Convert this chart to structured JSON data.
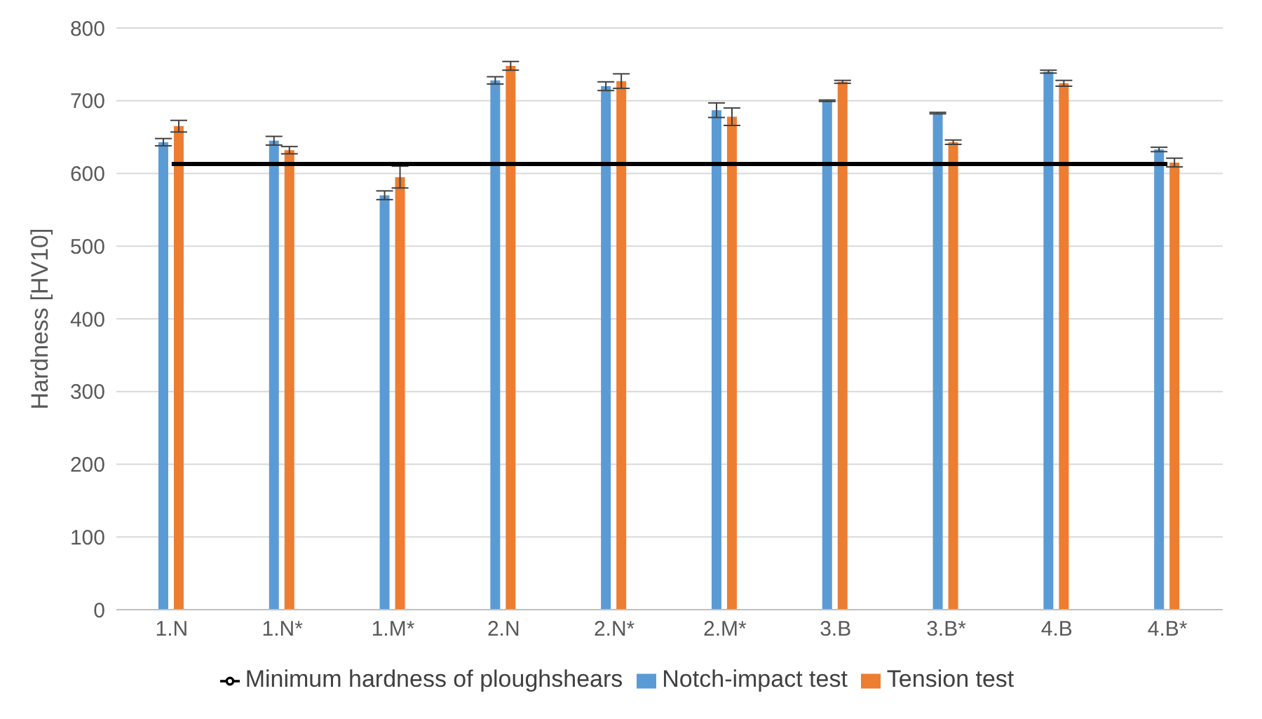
{
  "chart_data": {
    "type": "bar",
    "ylabel": "Hardness [HV10]",
    "categories": [
      "1.N",
      "1.N*",
      "1.M*",
      "2.N",
      "2.N*",
      "2.M*",
      "3.B",
      "3.B*",
      "4.B",
      "4.B*"
    ],
    "series": [
      {
        "name": "Notch-impact test",
        "color": "#5b9bd5",
        "values": [
          643,
          645,
          570,
          728,
          720,
          687,
          700,
          683,
          740,
          633
        ],
        "errors": [
          5,
          6,
          6,
          5,
          6,
          10,
          1,
          1,
          2,
          3
        ]
      },
      {
        "name": "Tension test",
        "color": "#ed7d31",
        "values": [
          665,
          632,
          595,
          748,
          727,
          678,
          726,
          643,
          724,
          615
        ],
        "errors": [
          8,
          5,
          15,
          6,
          10,
          12,
          2,
          3,
          4,
          6
        ]
      },
      {
        "name": "Minimum hardness of ploughshears",
        "type": "line",
        "color": "#000000",
        "values": [
          613,
          613,
          613,
          613,
          613,
          613,
          613,
          613,
          613,
          613
        ]
      }
    ],
    "ylim": [
      0,
      800
    ],
    "yticks": [
      0,
      100,
      200,
      300,
      400,
      500,
      600,
      700,
      800
    ],
    "grid": "y",
    "legend": "bottom",
    "marker": "none"
  }
}
